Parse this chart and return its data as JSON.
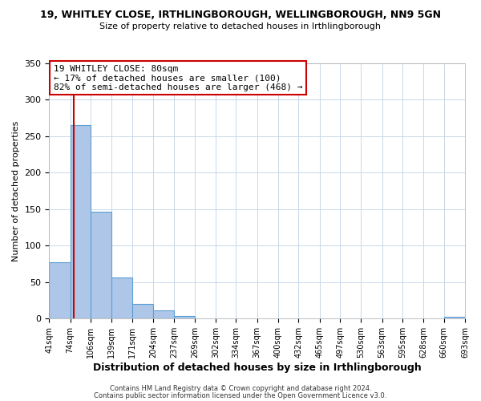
{
  "title": "19, WHITLEY CLOSE, IRTHLINGBOROUGH, WELLINGBOROUGH, NN9 5GN",
  "subtitle": "Size of property relative to detached houses in Irthlingborough",
  "xlabel": "Distribution of detached houses by size in Irthlingborough",
  "ylabel": "Number of detached properties",
  "bar_edges": [
    41,
    74,
    106,
    139,
    171,
    204,
    237,
    269,
    302,
    334,
    367,
    400,
    432,
    465,
    497,
    530,
    563,
    595,
    628,
    660,
    693
  ],
  "bar_heights": [
    77,
    265,
    147,
    57,
    20,
    11,
    4,
    0,
    0,
    0,
    0,
    0,
    0,
    0,
    0,
    0,
    0,
    0,
    0,
    3
  ],
  "bar_color": "#aec6e8",
  "bar_edge_color": "#5a9fd4",
  "vline_x": 80,
  "vline_color": "#cc0000",
  "annotation_line1": "19 WHITLEY CLOSE: 80sqm",
  "annotation_line2": "← 17% of detached houses are smaller (100)",
  "annotation_line3": "82% of semi-detached houses are larger (468) →",
  "annotation_box_color": "#ffffff",
  "annotation_box_edge": "#cc0000",
  "ylim": [
    0,
    350
  ],
  "yticks": [
    0,
    50,
    100,
    150,
    200,
    250,
    300,
    350
  ],
  "tick_labels": [
    "41sqm",
    "74sqm",
    "106sqm",
    "139sqm",
    "171sqm",
    "204sqm",
    "237sqm",
    "269sqm",
    "302sqm",
    "334sqm",
    "367sqm",
    "400sqm",
    "432sqm",
    "465sqm",
    "497sqm",
    "530sqm",
    "563sqm",
    "595sqm",
    "628sqm",
    "660sqm",
    "693sqm"
  ],
  "footer1": "Contains HM Land Registry data © Crown copyright and database right 2024.",
  "footer2": "Contains public sector information licensed under the Open Government Licence v3.0.",
  "background_color": "#ffffff",
  "grid_color": "#c8d8e8",
  "title_fontsize": 9,
  "subtitle_fontsize": 8,
  "xlabel_fontsize": 9,
  "ylabel_fontsize": 8,
  "tick_fontsize": 7,
  "footer_fontsize": 6
}
